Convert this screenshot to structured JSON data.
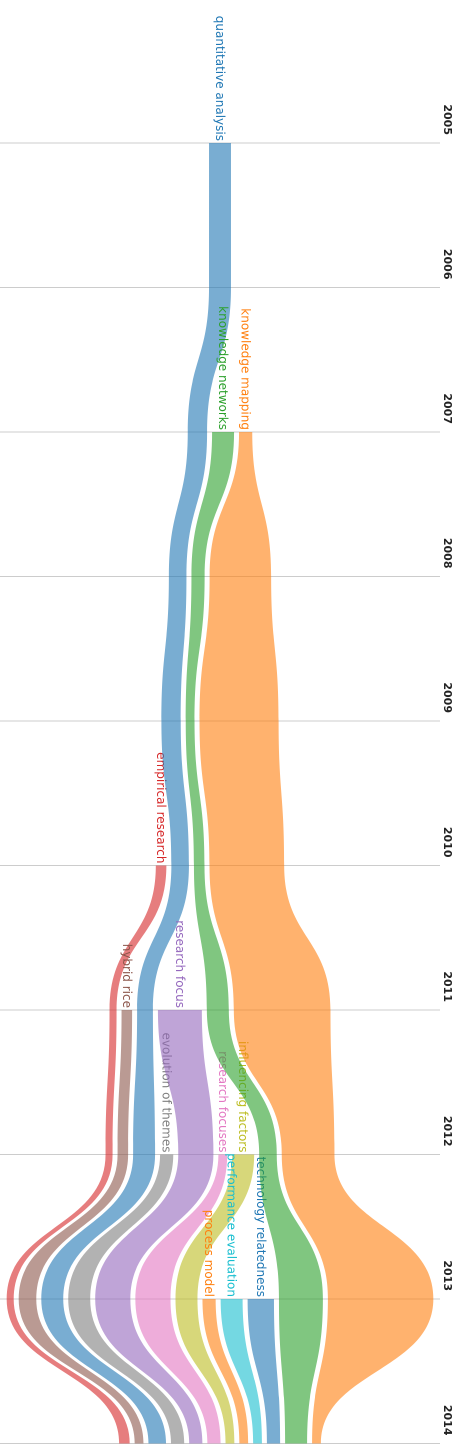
{
  "chart_data": {
    "type": "stream",
    "x": [
      2005,
      2006,
      2007,
      2008,
      2009,
      2010,
      2011,
      2012,
      2013,
      2014
    ],
    "series": [
      {
        "name": "empirical research",
        "color": "#d62728",
        "values": [
          null,
          null,
          null,
          null,
          null,
          12,
          8,
          8,
          8,
          12
        ]
      },
      {
        "name": "hybrid rice",
        "color": "#8c564b",
        "values": [
          null,
          null,
          null,
          null,
          null,
          null,
          12,
          12,
          20,
          10
        ]
      },
      {
        "name": "quantitative analysis",
        "color": "#1f77b4",
        "values": [
          25,
          25,
          22,
          20,
          22,
          20,
          18,
          25,
          25,
          20
        ]
      },
      {
        "name": "evolution of themes",
        "color": "#7f7f7f",
        "values": [
          null,
          null,
          null,
          null,
          null,
          null,
          null,
          15,
          25,
          15
        ]
      },
      {
        "name": "research focus",
        "color": "#9467bd",
        "values": [
          null,
          null,
          null,
          null,
          null,
          null,
          50,
          40,
          40,
          15
        ]
      },
      {
        "name": "research focuses",
        "color": "#e377c2",
        "values": [
          null,
          null,
          null,
          null,
          null,
          null,
          null,
          10,
          40,
          15
        ]
      },
      {
        "name": "influencing factors",
        "color": "#bcbd22",
        "values": [
          null,
          null,
          null,
          null,
          null,
          null,
          null,
          25,
          25,
          10
        ]
      },
      {
        "name": "process model",
        "color": "#ff7f0e",
        "values": [
          null,
          null,
          null,
          null,
          null,
          null,
          null,
          null,
          15,
          10
        ]
      },
      {
        "name": "performance evaluation",
        "color": "#17becf",
        "values": [
          null,
          null,
          null,
          null,
          null,
          null,
          null,
          null,
          25,
          10
        ]
      },
      {
        "name": "technology relatedness",
        "color": "#1f77b4",
        "values": [
          null,
          null,
          null,
          null,
          null,
          null,
          null,
          null,
          30,
          15
        ]
      },
      {
        "name": "knowledge networks",
        "color": "#2ca02c",
        "values": [
          null,
          null,
          25,
          15,
          10,
          12,
          25,
          20,
          50,
          25
        ]
      },
      {
        "name": "knowledge mapping",
        "color": "#ff7f0e",
        "values": [
          null,
          null,
          15,
          70,
          90,
          85,
          110,
          60,
          120,
          10
        ]
      }
    ]
  }
}
